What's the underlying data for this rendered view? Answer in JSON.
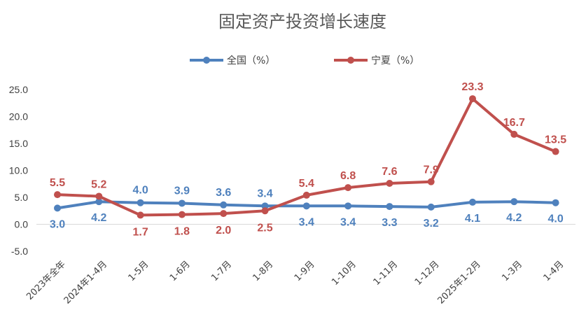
{
  "chart_data": {
    "type": "line",
    "title": "固定资产投资增长速度",
    "xlabel": "",
    "ylabel": "",
    "ylim": [
      -5.0,
      25.0
    ],
    "yticks": [
      "25.0",
      "20.0",
      "15.0",
      "10.0",
      "5.0",
      "0.0",
      "-5.0"
    ],
    "legend_position": "top",
    "grid": false,
    "categories": [
      "2023年全年",
      "2024年1-4月",
      "1-5月",
      "1-6月",
      "1-7月",
      "1-8月",
      "1-9月",
      "1-10月",
      "1-11月",
      "1-12月",
      "2025年1-2月",
      "1-3月",
      "1-4月"
    ],
    "series": [
      {
        "name": "全国（%）",
        "color": "#4F81BD",
        "values": [
          3.0,
          4.2,
          4.0,
          3.9,
          3.6,
          3.4,
          3.4,
          3.4,
          3.3,
          3.2,
          4.1,
          4.2,
          4.0
        ],
        "labels": [
          "3.0",
          "4.2",
          "4.0",
          "3.9",
          "3.6",
          "3.4",
          "3.4",
          "3.4",
          "3.3",
          "3.2",
          "4.1",
          "4.2",
          "4.0"
        ]
      },
      {
        "name": "宁夏（%）",
        "color": "#C0504D",
        "values": [
          5.5,
          5.2,
          1.7,
          1.8,
          2.0,
          2.5,
          5.4,
          6.8,
          7.6,
          7.9,
          23.3,
          16.7,
          13.5
        ],
        "labels": [
          "5.5",
          "5.2",
          "1.7",
          "1.8",
          "2.0",
          "2.5",
          "5.4",
          "6.8",
          "7.6",
          "7.9",
          "23.3",
          "16.7",
          "13.5"
        ]
      }
    ]
  }
}
